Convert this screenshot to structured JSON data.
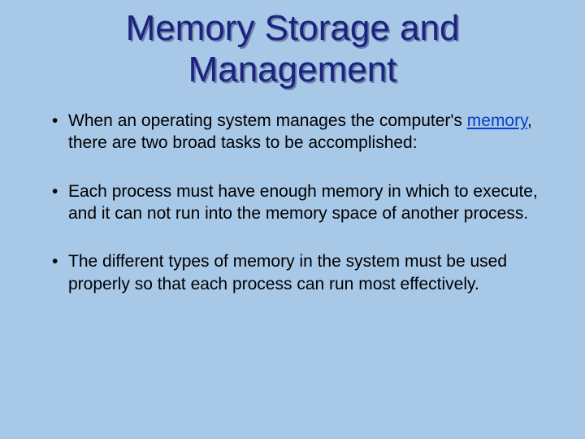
{
  "background_color": "#a8c8e8",
  "title": {
    "text": "Memory Storage and Management",
    "color": "#1a237e",
    "shadow_color": "#6a7ba8",
    "fontsize": 44
  },
  "bullets": [
    {
      "pre": "When an operating system manages the computer's ",
      "link": "memory",
      "post": ", there are two broad tasks to be accomplished:"
    },
    {
      "pre": "Each process must have enough memory in which to execute, and it can not run into the memory space of another process.",
      "link": "",
      "post": ""
    },
    {
      "pre": "The different types of memory in the system must be used properly so that each process can run most effectively.",
      "link": "",
      "post": ""
    }
  ],
  "link_color": "#0a3ec4",
  "body_fontsize": 21,
  "body_color": "#000000"
}
